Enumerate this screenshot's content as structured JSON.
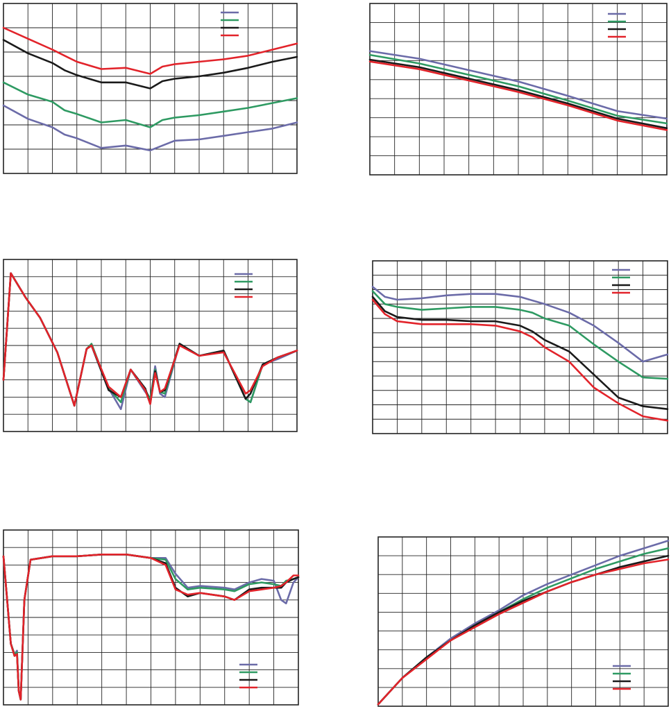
{
  "colors": {
    "blue": "#6b6ba8",
    "green": "#2e9a62",
    "black": "#1a1a1a",
    "red": "#e2232a"
  },
  "chart_data": [
    {
      "type": "line",
      "xlim": [
        0,
        12
      ],
      "ylim": [
        0,
        7
      ],
      "grid": true,
      "legend_position": "top-right",
      "series": [
        {
          "color": "blue",
          "x": [
            0,
            1,
            2,
            2.5,
            3,
            4,
            5,
            6,
            6.5,
            7,
            8,
            9,
            10,
            11,
            12
          ],
          "y": [
            2.8,
            2.25,
            1.9,
            1.6,
            1.45,
            1.05,
            1.15,
            0.95,
            1.15,
            1.35,
            1.4,
            1.55,
            1.7,
            1.85,
            2.1
          ]
        },
        {
          "color": "green",
          "x": [
            0,
            1,
            2,
            2.5,
            3,
            4,
            5,
            6,
            6.5,
            7,
            8,
            9,
            10,
            11,
            12
          ],
          "y": [
            3.75,
            3.25,
            2.95,
            2.6,
            2.45,
            2.1,
            2.2,
            1.9,
            2.2,
            2.3,
            2.4,
            2.55,
            2.7,
            2.9,
            3.1
          ]
        },
        {
          "color": "black",
          "x": [
            0,
            1,
            2,
            2.5,
            3,
            4,
            5,
            6,
            6.5,
            7,
            8,
            9,
            10,
            11,
            12
          ],
          "y": [
            5.5,
            4.95,
            4.55,
            4.25,
            4.05,
            3.75,
            3.75,
            3.5,
            3.8,
            3.9,
            4.0,
            4.15,
            4.35,
            4.6,
            4.8
          ]
        },
        {
          "color": "red",
          "x": [
            0,
            1,
            2,
            2.5,
            3,
            4,
            5,
            6,
            6.5,
            7,
            8,
            9,
            10,
            11,
            12
          ],
          "y": [
            6.0,
            5.55,
            5.1,
            4.85,
            4.6,
            4.3,
            4.35,
            4.1,
            4.4,
            4.5,
            4.6,
            4.7,
            4.85,
            5.1,
            5.35
          ]
        }
      ]
    },
    {
      "type": "line",
      "xlim": [
        0,
        12
      ],
      "ylim": [
        0,
        9
      ],
      "grid": true,
      "legend_position": "top-right",
      "series": [
        {
          "color": "blue",
          "x": [
            0,
            2,
            4,
            6,
            8,
            10,
            12
          ],
          "y": [
            6.5,
            6.1,
            5.5,
            4.9,
            4.15,
            3.35,
            2.95
          ]
        },
        {
          "color": "green",
          "x": [
            0,
            2,
            4,
            6,
            8,
            10,
            12
          ],
          "y": [
            6.3,
            5.85,
            5.25,
            4.65,
            3.9,
            3.1,
            2.7
          ]
        },
        {
          "color": "black",
          "x": [
            0,
            2,
            4,
            6,
            8,
            10,
            12
          ],
          "y": [
            6.05,
            5.65,
            5.05,
            4.45,
            3.75,
            2.95,
            2.45
          ]
        },
        {
          "color": "red",
          "x": [
            0,
            2,
            4,
            6,
            8,
            10,
            12
          ],
          "y": [
            5.95,
            5.55,
            4.95,
            4.35,
            3.65,
            2.85,
            2.35
          ]
        }
      ]
    },
    {
      "type": "line",
      "xlim": [
        0,
        12
      ],
      "ylim": [
        0,
        10
      ],
      "grid": true,
      "legend_position": "top-right",
      "series": [
        {
          "color": "blue",
          "x": [
            0,
            0.3,
            0.9,
            1.5,
            2.2,
            2.9,
            3.4,
            3.6,
            4.3,
            4.8,
            5.2,
            5.8,
            6,
            6.2,
            6.4,
            6.6,
            7.2,
            8,
            9,
            9.9,
            10.1,
            10.6,
            11.2,
            12
          ],
          "y": [
            3,
            9.2,
            7.8,
            6.6,
            4.6,
            1.5,
            4.8,
            5.0,
            2.5,
            1.3,
            3.6,
            2.3,
            1.9,
            3.8,
            2.2,
            2.0,
            5.1,
            4.4,
            4.7,
            1.9,
            1.7,
            3.9,
            4.2,
            4.7
          ]
        },
        {
          "color": "green",
          "x": [
            0,
            0.3,
            0.9,
            1.5,
            2.2,
            2.9,
            3.4,
            3.6,
            4.3,
            4.8,
            5.2,
            5.8,
            6,
            6.2,
            6.4,
            6.6,
            7.2,
            8,
            9,
            9.9,
            10.1,
            10.6,
            11.2,
            12
          ],
          "y": [
            3,
            9.2,
            7.8,
            6.6,
            4.6,
            1.5,
            4.8,
            5.1,
            2.5,
            1.7,
            3.6,
            2.4,
            1.9,
            3.6,
            2.3,
            2.2,
            5.1,
            4.4,
            4.7,
            1.9,
            1.7,
            3.9,
            4.3,
            4.7
          ]
        },
        {
          "color": "black",
          "x": [
            0,
            0.3,
            0.9,
            1.5,
            2.2,
            2.9,
            3.4,
            3.6,
            4.3,
            4.8,
            5.2,
            5.8,
            6,
            6.2,
            6.4,
            6.6,
            7.2,
            8,
            9,
            9.9,
            10.1,
            10.6,
            11.2,
            12
          ],
          "y": [
            3,
            9.2,
            7.8,
            6.6,
            4.6,
            1.5,
            4.8,
            5.0,
            2.4,
            2.0,
            3.6,
            2.5,
            1.6,
            3.5,
            2.3,
            2.4,
            5.1,
            4.4,
            4.7,
            1.9,
            2.2,
            3.9,
            4.3,
            4.7
          ]
        },
        {
          "color": "red",
          "x": [
            0,
            0.3,
            0.9,
            1.5,
            2.2,
            2.9,
            3.4,
            3.6,
            4.3,
            4.8,
            5.2,
            5.8,
            6,
            6.2,
            6.4,
            6.6,
            7.2,
            8,
            9,
            9.9,
            10.1,
            10.6,
            11.2,
            12
          ],
          "y": [
            3,
            9.2,
            7.8,
            6.6,
            4.6,
            1.5,
            4.8,
            5.0,
            2.6,
            2.0,
            3.6,
            2.4,
            1.6,
            3.4,
            2.3,
            2.5,
            5.0,
            4.4,
            4.6,
            2.2,
            2.4,
            3.8,
            4.3,
            4.7
          ]
        }
      ]
    },
    {
      "type": "line",
      "xlim": [
        0,
        12
      ],
      "ylim": [
        0,
        12
      ],
      "grid": true,
      "legend_position": "top-right",
      "series": [
        {
          "color": "blue",
          "x": [
            0,
            0.5,
            1,
            2,
            3,
            4,
            5,
            6,
            7,
            8,
            9,
            10,
            11,
            12
          ],
          "y": [
            10.2,
            9.5,
            9.3,
            9.4,
            9.6,
            9.7,
            9.7,
            9.5,
            9.0,
            8.4,
            7.5,
            6.3,
            5.0,
            5.5
          ]
        },
        {
          "color": "green",
          "x": [
            0,
            0.5,
            1,
            2,
            3,
            4,
            5,
            6,
            6.5,
            7,
            8,
            9,
            10,
            11,
            12
          ],
          "y": [
            9.9,
            9.0,
            8.8,
            8.6,
            8.7,
            8.8,
            8.8,
            8.6,
            8.4,
            8.0,
            7.5,
            6.2,
            5.0,
            3.9,
            3.8
          ]
        },
        {
          "color": "black",
          "x": [
            0,
            0.5,
            1,
            2,
            3,
            4,
            5,
            6,
            6.5,
            7,
            8,
            9,
            10,
            11,
            12
          ],
          "y": [
            9.5,
            8.5,
            8.1,
            7.9,
            7.9,
            7.8,
            7.8,
            7.5,
            7.1,
            6.5,
            5.7,
            4.1,
            2.5,
            1.9,
            1.7
          ]
        },
        {
          "color": "red",
          "x": [
            0,
            0.5,
            1,
            2,
            3,
            4,
            5,
            6,
            6.5,
            7,
            8,
            9,
            10,
            11,
            12
          ],
          "y": [
            9.3,
            8.3,
            7.8,
            7.6,
            7.6,
            7.6,
            7.5,
            7.1,
            6.7,
            6.0,
            5.0,
            3.2,
            2.1,
            1.2,
            0.9
          ]
        }
      ]
    },
    {
      "type": "line",
      "xlim": [
        0,
        12
      ],
      "ylim": [
        0,
        10
      ],
      "grid": true,
      "legend_position": "bottom-right",
      "series": [
        {
          "color": "blue",
          "x": [
            0,
            0.3,
            0.45,
            0.55,
            0.62,
            0.7,
            0.85,
            1.1,
            2,
            3,
            4,
            5,
            6,
            6.6,
            7,
            7.5,
            8,
            9,
            9.4,
            10,
            10.5,
            11,
            11.3,
            11.5,
            11.8,
            12
          ],
          "y": [
            8.5,
            3.5,
            2.9,
            3.1,
            0.8,
            0.3,
            6.0,
            8.3,
            8.5,
            8.5,
            8.6,
            8.6,
            8.4,
            8.4,
            7.5,
            6.7,
            6.8,
            6.7,
            6.6,
            7.0,
            7.2,
            7.1,
            6.0,
            5.8,
            7.0,
            7.3
          ]
        },
        {
          "color": "green",
          "x": [
            0,
            0.3,
            0.45,
            0.55,
            0.62,
            0.7,
            0.85,
            1.1,
            2,
            3,
            4,
            5,
            6,
            6.6,
            7,
            7.5,
            8,
            9,
            9.4,
            10,
            10.5,
            11,
            11.3,
            11.5,
            11.8,
            12
          ],
          "y": [
            8.5,
            3.5,
            2.9,
            3.0,
            0.8,
            0.3,
            6.0,
            8.3,
            8.5,
            8.5,
            8.6,
            8.6,
            8.4,
            8.3,
            7.2,
            6.6,
            6.7,
            6.6,
            6.5,
            6.9,
            7.0,
            6.9,
            6.8,
            7.1,
            7.2,
            7.3
          ]
        },
        {
          "color": "black",
          "x": [
            0,
            0.3,
            0.45,
            0.55,
            0.62,
            0.7,
            0.85,
            1.1,
            2,
            3,
            4,
            5,
            6,
            6.6,
            7,
            7.5,
            8,
            9,
            9.4,
            10,
            10.5,
            11,
            11.3,
            11.5,
            11.8,
            12
          ],
          "y": [
            8.5,
            3.5,
            2.8,
            2.9,
            0.8,
            0.3,
            6.0,
            8.3,
            8.5,
            8.5,
            8.6,
            8.6,
            8.4,
            8.1,
            6.7,
            6.2,
            6.4,
            6.2,
            6.0,
            6.6,
            6.7,
            6.7,
            6.7,
            7.0,
            7.2,
            7.3
          ]
        },
        {
          "color": "red",
          "x": [
            0,
            0.3,
            0.45,
            0.55,
            0.62,
            0.7,
            0.85,
            1.1,
            2,
            3,
            4,
            5,
            6,
            6.6,
            7,
            7.5,
            8,
            9,
            9.4,
            10,
            10.5,
            11,
            11.3,
            11.5,
            11.8,
            12
          ],
          "y": [
            8.5,
            3.5,
            2.8,
            2.9,
            0.8,
            0.3,
            6.0,
            8.3,
            8.5,
            8.5,
            8.6,
            8.6,
            8.4,
            8.0,
            6.6,
            6.3,
            6.4,
            6.2,
            6.0,
            6.5,
            6.6,
            6.7,
            6.8,
            7.0,
            7.4,
            7.4
          ]
        }
      ]
    },
    {
      "type": "line",
      "xlim": [
        0,
        12
      ],
      "ylim": [
        0,
        9
      ],
      "grid": true,
      "legend_position": "bottom-right",
      "series": [
        {
          "color": "blue",
          "x": [
            0,
            1,
            2,
            3,
            4,
            5,
            6,
            7,
            8,
            9,
            10,
            11,
            12
          ],
          "y": [
            0.1,
            1.5,
            2.6,
            3.6,
            4.4,
            5.1,
            5.9,
            6.5,
            7.0,
            7.5,
            8.0,
            8.4,
            8.8
          ]
        },
        {
          "color": "green",
          "x": [
            0,
            1,
            2,
            3,
            4,
            5,
            6,
            7,
            8,
            9,
            10,
            11,
            12
          ],
          "y": [
            0.1,
            1.5,
            2.6,
            3.5,
            4.3,
            5.0,
            5.7,
            6.3,
            6.8,
            7.3,
            7.7,
            8.1,
            8.4
          ]
        },
        {
          "color": "black",
          "x": [
            0,
            1,
            2,
            3,
            4,
            5,
            6,
            7,
            8,
            9,
            10,
            11,
            12
          ],
          "y": [
            0.1,
            1.5,
            2.6,
            3.5,
            4.3,
            5.0,
            5.6,
            6.1,
            6.6,
            7.0,
            7.4,
            7.7,
            8.0
          ]
        },
        {
          "color": "red",
          "x": [
            0,
            1,
            2,
            3,
            4,
            5,
            6,
            7,
            8,
            9,
            10,
            11,
            12
          ],
          "y": [
            0.1,
            1.5,
            2.5,
            3.5,
            4.2,
            4.9,
            5.5,
            6.1,
            6.6,
            7.0,
            7.3,
            7.6,
            7.8
          ]
        }
      ]
    }
  ]
}
